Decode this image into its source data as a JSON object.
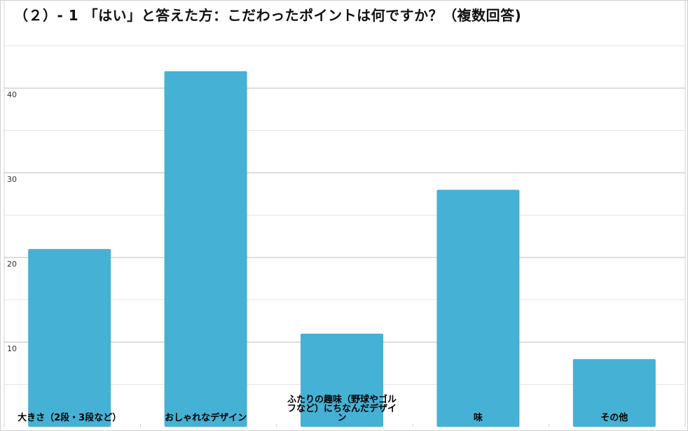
{
  "chart_data": {
    "type": "bar",
    "title": "（２）- 1 「はい」と答えた方：こだわったポイントは何ですか？（複数回答)",
    "categories": [
      "大きさ（2段・3段など）",
      "おしゃれなデザイン",
      "ふたりの趣味（野球やゴルフなど）にちなんだデザイン",
      "味",
      "その他"
    ],
    "category_label_lines": [
      [
        "大きさ（2段・3段など）"
      ],
      [
        "おしゃれなデザイン"
      ],
      [
        "ふたりの趣味（野球やゴル",
        "フなど）にちなんだデザイ",
        "ン"
      ],
      [
        "味"
      ],
      [
        "その他"
      ]
    ],
    "values": [
      21,
      42,
      11,
      28,
      8
    ],
    "yticks": [
      10,
      20,
      30,
      40
    ],
    "ylim": [
      0,
      45
    ],
    "xlabel": "",
    "ylabel": "",
    "grid": true,
    "bar_color": "#45b1d5"
  }
}
